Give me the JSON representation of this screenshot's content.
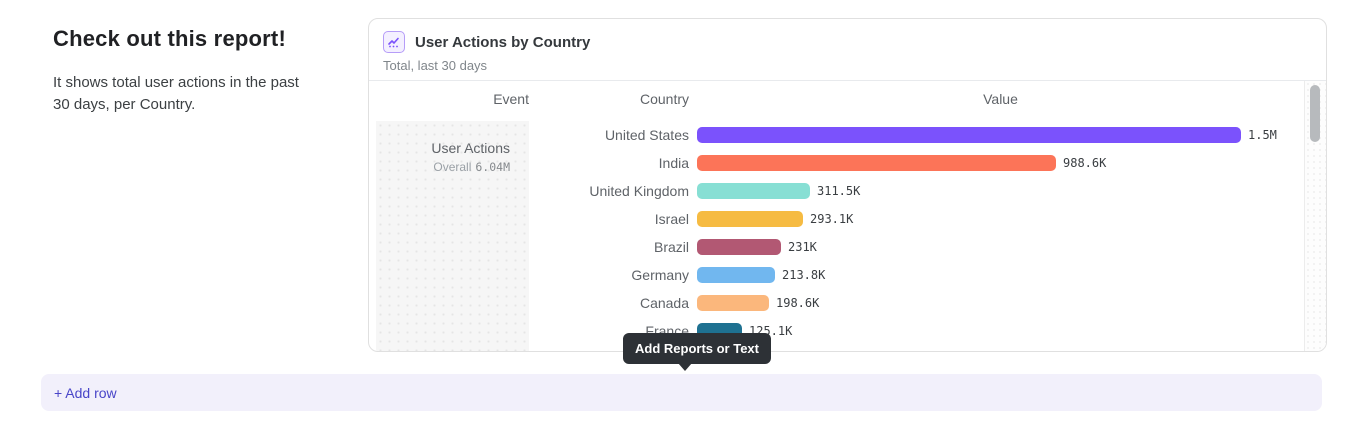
{
  "page": {
    "heading": "Check out this report!",
    "description": "It shows total user actions in the past 30 days, per Country.",
    "tooltip_label": "Add Reports or Text",
    "add_row_label": "+ Add row"
  },
  "report_card": {
    "title": "User Actions by Country",
    "subtitle": "Total, last 30 days",
    "columns": {
      "event": "Event",
      "country": "Country",
      "value": "Value"
    },
    "event": {
      "name": "User Actions",
      "overall_label": "Overall",
      "overall_value": "6.04M"
    }
  },
  "chart_data": {
    "type": "bar",
    "orientation": "horizontal",
    "title": "User Actions by Country",
    "xlabel": "Value",
    "ylabel": "Country",
    "xlim": [
      0,
      1500000
    ],
    "grid": false,
    "categories": [
      "United States",
      "India",
      "United Kingdom",
      "Israel",
      "Brazil",
      "Germany",
      "Canada",
      "France"
    ],
    "values": [
      1500000,
      988600,
      311500,
      293100,
      231000,
      213800,
      198600,
      125100
    ],
    "value_labels": [
      "1.5M",
      "988.6K",
      "311.5K",
      "293.1K",
      "231K",
      "213.8K",
      "198.6K",
      "125.1K"
    ],
    "bar_colors": [
      "#7b52fc",
      "#fc7458",
      "#87dfd4",
      "#f6bb42",
      "#b25873",
      "#71b7ef",
      "#fbb77c",
      "#1e7191"
    ]
  },
  "colors": {
    "accent_purple": "#7b52fc",
    "add_row_bg": "#f2f0fb",
    "add_row_text": "#4945c8",
    "tooltip_bg": "#2d3136",
    "event_cell_bg": "#f6f6f6"
  }
}
